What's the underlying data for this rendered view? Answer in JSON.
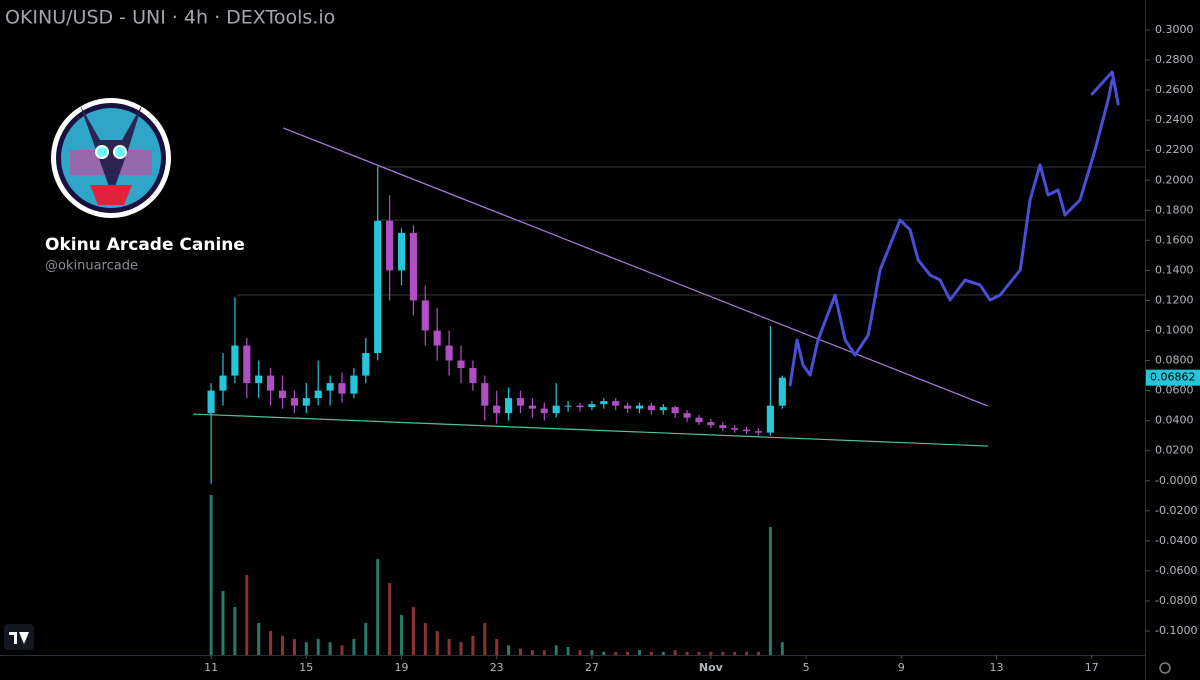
{
  "chart_data": {
    "type": "candlestick",
    "title": "OKINU/USD - UNI · 4h · DEXTools.io",
    "profile_name": "Okinu Arcade Canine",
    "profile_handle": "@okinuarcade",
    "up_color": "#26c6da",
    "down_color": "#b04fc4",
    "volume_up_color": "#2a7a6a",
    "volume_down_color": "#8b3434",
    "x": [
      0,
      0.5,
      1,
      1.5,
      2,
      2.5,
      3,
      3.5,
      4,
      4.5,
      5,
      5.5,
      6,
      6.5,
      7,
      7.5,
      8,
      8.5,
      9,
      9.5,
      10,
      10.5,
      11,
      11.5,
      12,
      12.5,
      13,
      13.5,
      14,
      14.5,
      15,
      15.5,
      16,
      16.5,
      17,
      17.5,
      18,
      18.5,
      19,
      19.5,
      20,
      20.5,
      21,
      21.5,
      22,
      22.5,
      23,
      23.5,
      24
    ],
    "open": [
      0.045,
      0.06,
      0.07,
      0.09,
      0.065,
      0.07,
      0.06,
      0.055,
      0.05,
      0.055,
      0.06,
      0.065,
      0.058,
      0.07,
      0.085,
      0.173,
      0.14,
      0.165,
      0.12,
      0.1,
      0.09,
      0.08,
      0.075,
      0.065,
      0.05,
      0.045,
      0.055,
      0.05,
      0.048,
      0.045,
      0.05,
      0.05,
      0.049,
      0.051,
      0.053,
      0.05,
      0.048,
      0.05,
      0.047,
      0.049,
      0.045,
      0.042,
      0.039,
      0.037,
      0.035,
      0.034,
      0.033,
      0.032,
      0.05
    ],
    "high": [
      0.065,
      0.085,
      0.122,
      0.095,
      0.08,
      0.075,
      0.07,
      0.06,
      0.065,
      0.08,
      0.07,
      0.072,
      0.075,
      0.095,
      0.209,
      0.19,
      0.168,
      0.17,
      0.13,
      0.115,
      0.1,
      0.09,
      0.08,
      0.07,
      0.06,
      0.062,
      0.06,
      0.055,
      0.052,
      0.065,
      0.053,
      0.052,
      0.053,
      0.055,
      0.055,
      0.052,
      0.052,
      0.052,
      0.051,
      0.05,
      0.047,
      0.044,
      0.041,
      0.039,
      0.037,
      0.036,
      0.035,
      0.103,
      0.07
    ],
    "low": [
      -0.002,
      0.05,
      0.065,
      0.055,
      0.055,
      0.05,
      0.048,
      0.045,
      0.045,
      0.05,
      0.05,
      0.052,
      0.055,
      0.065,
      0.08,
      0.12,
      0.13,
      0.11,
      0.09,
      0.08,
      0.07,
      0.065,
      0.06,
      0.04,
      0.038,
      0.04,
      0.045,
      0.042,
      0.04,
      0.042,
      0.046,
      0.046,
      0.047,
      0.048,
      0.047,
      0.045,
      0.045,
      0.044,
      0.044,
      0.042,
      0.039,
      0.037,
      0.035,
      0.033,
      0.032,
      0.031,
      0.03,
      0.03,
      0.048
    ],
    "close": [
      0.06,
      0.07,
      0.09,
      0.065,
      0.07,
      0.06,
      0.055,
      0.05,
      0.055,
      0.06,
      0.065,
      0.058,
      0.07,
      0.085,
      0.173,
      0.14,
      0.165,
      0.12,
      0.1,
      0.09,
      0.08,
      0.075,
      0.065,
      0.05,
      0.045,
      0.055,
      0.05,
      0.048,
      0.045,
      0.05,
      0.05,
      0.049,
      0.051,
      0.053,
      0.05,
      0.048,
      0.05,
      0.047,
      0.049,
      0.045,
      0.042,
      0.039,
      0.037,
      0.035,
      0.034,
      0.033,
      0.032,
      0.05,
      0.0686
    ],
    "volume": [
      100,
      40,
      30,
      50,
      20,
      15,
      12,
      10,
      8,
      10,
      8,
      6,
      10,
      20,
      60,
      45,
      25,
      30,
      20,
      15,
      10,
      8,
      12,
      20,
      10,
      6,
      4,
      3,
      3,
      6,
      5,
      3,
      3,
      2,
      2,
      2,
      3,
      2,
      2,
      3,
      2,
      2,
      2,
      2,
      2,
      2,
      2,
      80,
      8
    ],
    "last_price": 0.06862,
    "xlim": [
      -8.87,
      39.24
    ],
    "ylim": [
      -0.1,
      0.3
    ],
    "xticks": [
      {
        "value": 0,
        "label": "11"
      },
      {
        "value": 4,
        "label": "15"
      },
      {
        "value": 8,
        "label": "19"
      },
      {
        "value": 12,
        "label": "23"
      },
      {
        "value": 16,
        "label": "27"
      },
      {
        "value": 21,
        "label": "Nov"
      },
      {
        "value": 25,
        "label": "5"
      },
      {
        "value": 29,
        "label": "9"
      },
      {
        "value": 33,
        "label": "13"
      },
      {
        "value": 37,
        "label": "17"
      }
    ],
    "yticks": [
      {
        "value": 0.3,
        "label": "0.3000"
      },
      {
        "value": 0.28,
        "label": "0.2800"
      },
      {
        "value": 0.26,
        "label": "0.2600"
      },
      {
        "value": 0.24,
        "label": "0.2400"
      },
      {
        "value": 0.22,
        "label": "0.2200"
      },
      {
        "value": 0.2,
        "label": "0.2000"
      },
      {
        "value": 0.18,
        "label": "0.1800"
      },
      {
        "value": 0.16,
        "label": "0.1600"
      },
      {
        "value": 0.14,
        "label": "0.1400"
      },
      {
        "value": 0.12,
        "label": "0.1200"
      },
      {
        "value": 0.1,
        "label": "0.1000"
      },
      {
        "value": 0.08,
        "label": "0.0800"
      },
      {
        "value": 0.06,
        "label": "0.0600"
      },
      {
        "value": 0.04,
        "label": "0.0400"
      },
      {
        "value": 0.02,
        "label": "0.0200"
      },
      {
        "value": 0,
        "label": "-0.0000"
      },
      {
        "value": -0.02,
        "label": "-0.0200"
      },
      {
        "value": -0.04,
        "label": "-0.0400"
      },
      {
        "value": -0.06,
        "label": "-0.0600"
      },
      {
        "value": -0.08,
        "label": "-0.0800"
      },
      {
        "value": -0.1,
        "label": "-0.1000"
      }
    ],
    "levels": [
      {
        "x": 7,
        "y": 0.2088
      },
      {
        "x": 7,
        "y": 0.1735
      },
      {
        "x": 1.1,
        "y": 0.1236
      }
    ],
    "level_color": "#3a3a3a",
    "trendlines": [
      {
        "x": [
          3.03,
          32.63
        ],
        "y": [
          0.2348,
          0.0498
        ],
        "color": "#a77fe0"
      },
      {
        "x": [
          -0.76,
          32.65
        ],
        "y": [
          0.0444,
          0.0231
        ],
        "color": "#4fc49a"
      }
    ],
    "projection": {
      "color": "#4a4fd8",
      "x": [
        24.33,
        24.62,
        24.87,
        25.17,
        25.5,
        26.22,
        26.64,
        27.06,
        27.61,
        28.11,
        28.95,
        29.37,
        29.71,
        30.21,
        30.63,
        31.05,
        31.68,
        32.31,
        32.73,
        33.15,
        34.0,
        34.41,
        34.83,
        35.17,
        35.59,
        35.88,
        36.51,
        37.14,
        37.69,
        37.86
      ],
      "y": [
        0.0637,
        0.0937,
        0.077,
        0.0704,
        0.0937,
        0.1236,
        0.0937,
        0.0837,
        0.097,
        0.1403,
        0.1735,
        0.1669,
        0.1469,
        0.1369,
        0.1336,
        0.1203,
        0.1336,
        0.1303,
        0.1203,
        0.1236,
        0.1403,
        0.1869,
        0.2102,
        0.1902,
        0.1935,
        0.1769,
        0.1869,
        0.2201,
        0.2534,
        0.2667
      ]
    }
  }
}
